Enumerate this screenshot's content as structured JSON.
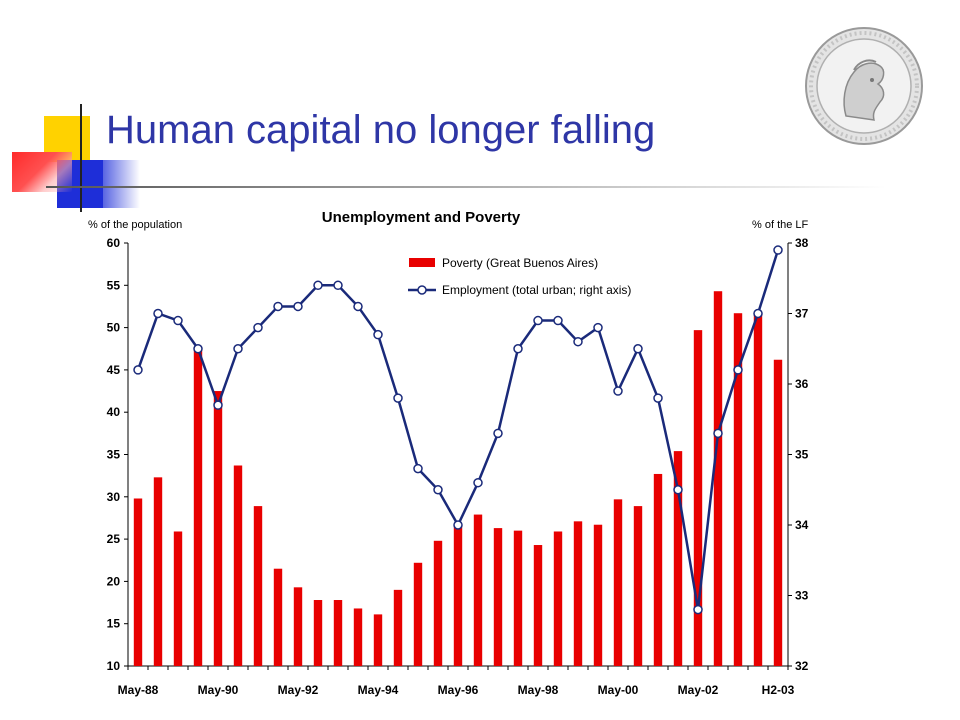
{
  "slide": {
    "title": "Human capital no longer falling"
  },
  "colors": {
    "title": "#2e36a6",
    "accent_yellow": "#ffd200",
    "accent_blue": "#1e2ed8",
    "accent_red": "#ff2a2a",
    "bar": "#e80000",
    "line": "#1a2a7a"
  },
  "logo": {
    "icon": "coin-seal-icon"
  },
  "chart_data": {
    "type": "bar",
    "title": "Unemployment and Poverty",
    "left_axis_unit": "% of the population",
    "right_axis_unit": "% of the LF",
    "ylim_left": [
      10,
      60
    ],
    "yticks_left": [
      10,
      15,
      20,
      25,
      30,
      35,
      40,
      45,
      50,
      55,
      60
    ],
    "ylim_right": [
      32,
      38
    ],
    "yticks_right": [
      32,
      33,
      34,
      35,
      36,
      37,
      38
    ],
    "x_tick_labels": [
      "May-88",
      "May-90",
      "May-92",
      "May-94",
      "May-96",
      "May-98",
      "May-00",
      "May-02",
      "H2-03"
    ],
    "x_tick_positions": [
      0,
      4,
      8,
      12,
      16,
      20,
      24,
      28,
      32
    ],
    "legend_placement": "top-center",
    "series": [
      {
        "name": "Poverty (Great Buenos Aires)",
        "type": "bar",
        "axis": "left",
        "values": [
          29.8,
          32.3,
          25.9,
          47.3,
          42.5,
          33.7,
          28.9,
          21.5,
          19.3,
          17.8,
          17.8,
          16.8,
          16.1,
          19.0,
          22.2,
          24.8,
          26.7,
          27.9,
          26.3,
          26.0,
          24.3,
          25.9,
          27.1,
          26.7,
          29.7,
          28.9,
          32.7,
          35.4,
          49.7,
          54.3,
          51.7,
          51.7,
          46.2
        ]
      },
      {
        "name": "Employment (total urban; right axis)",
        "type": "line",
        "axis": "right",
        "values": [
          36.2,
          37.0,
          36.9,
          36.5,
          35.7,
          36.5,
          36.8,
          37.1,
          37.1,
          37.4,
          37.4,
          37.1,
          36.7,
          35.8,
          34.8,
          34.5,
          34.0,
          34.6,
          35.3,
          36.5,
          36.9,
          36.9,
          36.6,
          36.8,
          35.9,
          36.5,
          35.8,
          34.5,
          32.8,
          35.3,
          36.2,
          37.0,
          37.9
        ]
      }
    ]
  }
}
